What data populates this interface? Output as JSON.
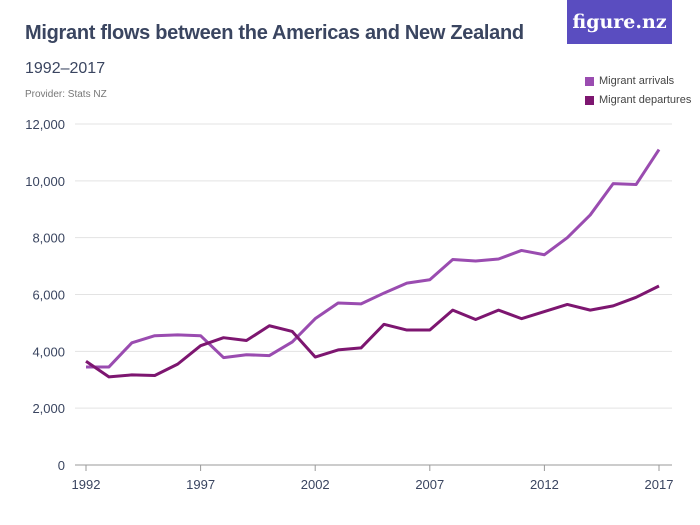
{
  "logo": "figure.nz",
  "provider": "Provider: Stats NZ",
  "chart_data": {
    "type": "line",
    "title": "Migrant flows between the Americas and New Zealand",
    "subtitle": "1992–2017",
    "xlabel": "",
    "ylabel": "",
    "ylim": [
      0,
      12000
    ],
    "yticks": [
      0,
      2000,
      4000,
      6000,
      8000,
      10000,
      12000
    ],
    "ytick_labels": [
      "0",
      "2,000",
      "4,000",
      "6,000",
      "8,000",
      "10,000",
      "12,000"
    ],
    "xticks": [
      1992,
      1997,
      2002,
      2007,
      2012,
      2017
    ],
    "xtick_labels": [
      "1992",
      "1997",
      "2002",
      "2007",
      "2012",
      "2017"
    ],
    "grid": true,
    "legend_position": "top-right",
    "x": [
      1992,
      1993,
      1994,
      1995,
      1996,
      1997,
      1998,
      1999,
      2000,
      2001,
      2002,
      2003,
      2004,
      2005,
      2006,
      2007,
      2008,
      2009,
      2010,
      2011,
      2012,
      2013,
      2014,
      2015,
      2016,
      2017
    ],
    "series": [
      {
        "name": "Migrant arrivals",
        "color": "#9a4cb0",
        "values": [
          3450,
          3450,
          4300,
          4550,
          4580,
          4550,
          3780,
          3880,
          3850,
          4330,
          5150,
          5700,
          5670,
          6050,
          6400,
          6520,
          7230,
          7180,
          7250,
          7550,
          7400,
          8000,
          8800,
          9900,
          9870,
          11100
        ]
      },
      {
        "name": "Migrant departures",
        "color": "#7d1670",
        "values": [
          3650,
          3100,
          3170,
          3150,
          3550,
          4200,
          4480,
          4380,
          4900,
          4700,
          3800,
          4050,
          4120,
          4950,
          4750,
          4750,
          5450,
          5120,
          5450,
          5150,
          5400,
          5650,
          5450,
          5600,
          5900,
          6300
        ]
      }
    ]
  }
}
